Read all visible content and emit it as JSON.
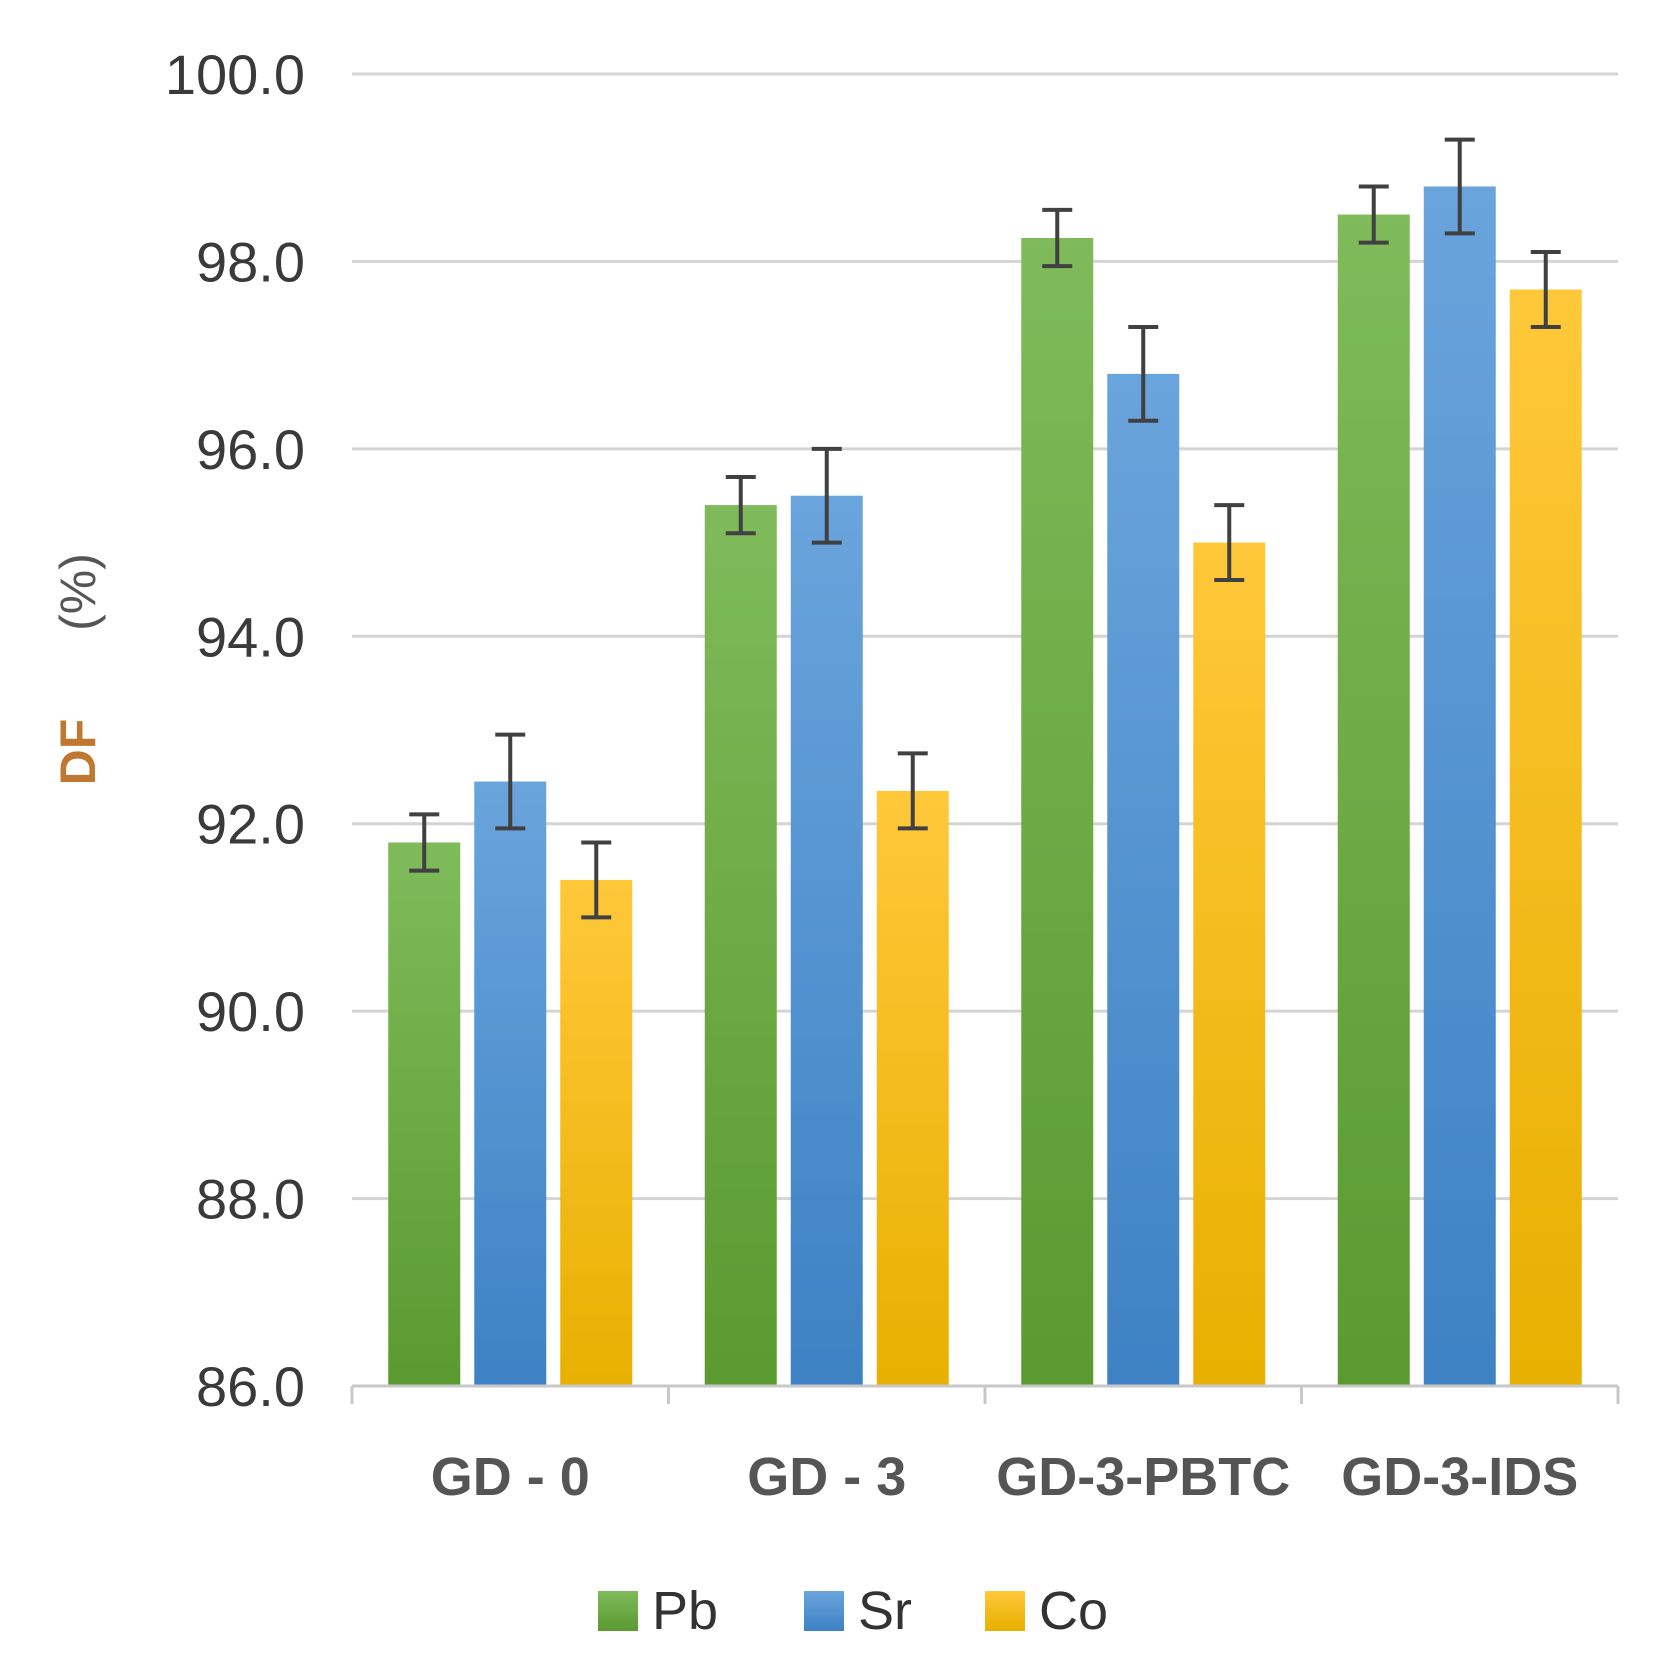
{
  "chart_data": {
    "type": "bar",
    "title": "",
    "xlabel": "",
    "ylabel": "DF",
    "ylabel_unit": "(%)",
    "ylim": [
      86.0,
      100.0
    ],
    "ytick_step": 2.0,
    "ytick_labels": [
      "86.0",
      "88.0",
      "90.0",
      "92.0",
      "94.0",
      "96.0",
      "98.0",
      "100.0"
    ],
    "grid": true,
    "legend_position": "bottom",
    "categories": [
      "GD - 0",
      "GD - 3",
      "GD-3-PBTC",
      "GD-3-IDS"
    ],
    "series": [
      {
        "name": "Pb",
        "color": "#6aaa3a",
        "values": [
          91.8,
          95.4,
          98.25,
          98.5
        ],
        "errors": [
          0.3,
          0.3,
          0.3,
          0.3
        ]
      },
      {
        "name": "Sr",
        "color": "#4a90d0",
        "values": [
          92.45,
          95.5,
          96.8,
          98.8
        ],
        "errors": [
          0.5,
          0.5,
          0.5,
          0.5
        ]
      },
      {
        "name": "Co",
        "color": "#f5b800",
        "values": [
          91.4,
          92.35,
          95.0,
          97.7
        ],
        "errors": [
          0.4,
          0.4,
          0.4,
          0.4
        ]
      }
    ]
  }
}
